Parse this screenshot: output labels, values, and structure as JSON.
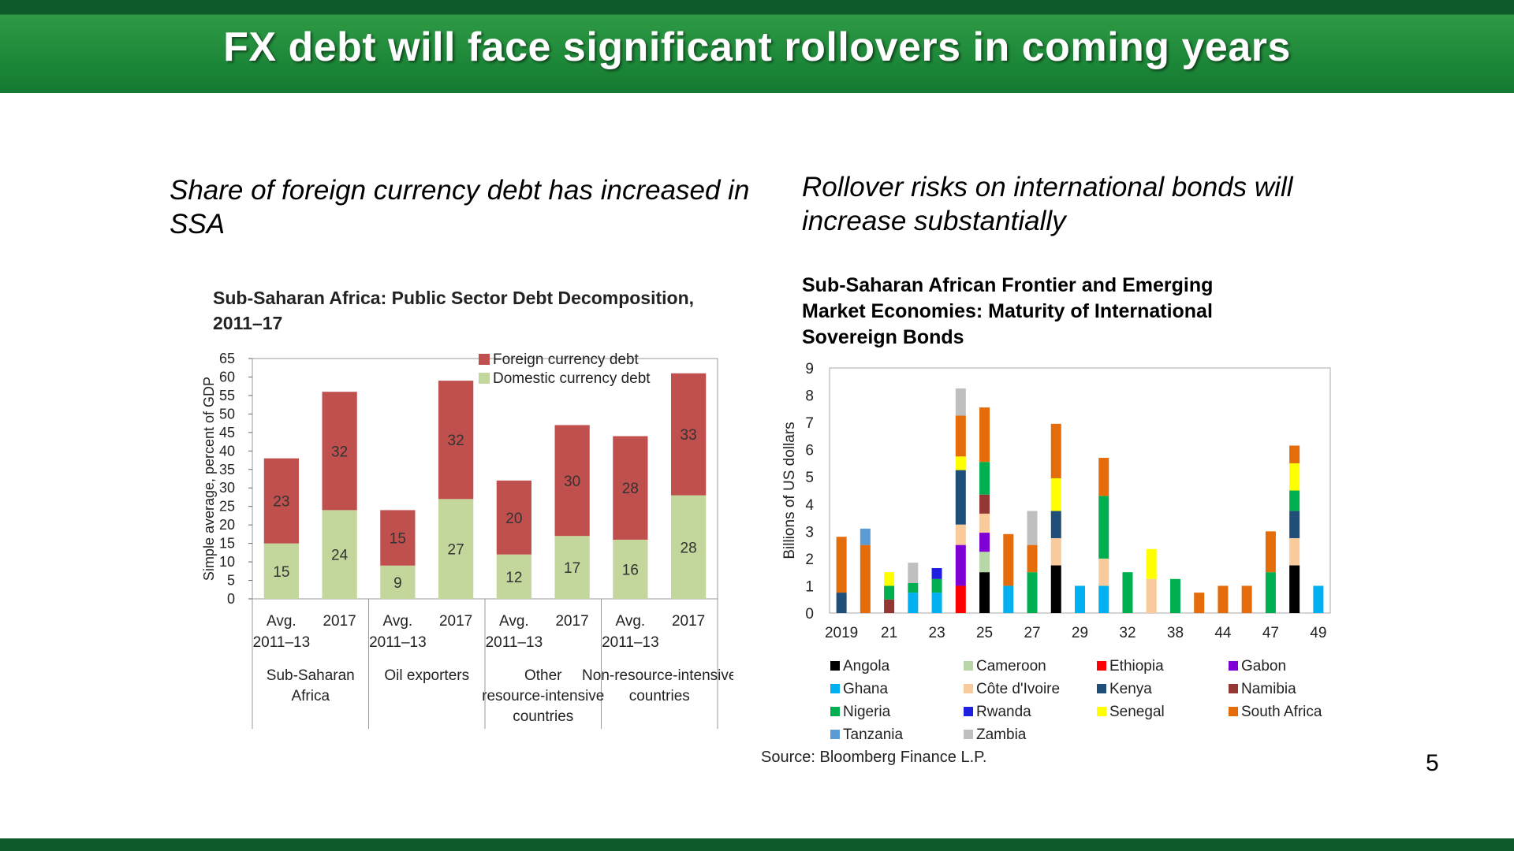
{
  "slide": {
    "title": "FX debt will face significant rollovers in coming years",
    "left_subtitle": "Share of foreign currency debt has increased in SSA",
    "right_subtitle": "Rollover risks on international bonds will increase substantially",
    "page_number": "5",
    "source": "Source: Bloomberg Finance L.P."
  },
  "colors": {
    "banner_dark": "#0e5a2a",
    "banner_green": "#1f8a3a",
    "foreign_debt": "#c0504d",
    "domestic_debt": "#c3d69b"
  },
  "chart_data": [
    {
      "type": "bar",
      "stacked": true,
      "title": "Sub-Saharan Africa: Public Sector Debt Decomposition, 2011–17",
      "ylabel": "Simple average, percent of GDP",
      "ylim": [
        0,
        65
      ],
      "yticks": [
        0,
        5,
        10,
        15,
        20,
        25,
        30,
        35,
        40,
        45,
        50,
        55,
        60,
        65
      ],
      "legend_position": "top-right",
      "categories": [
        "Avg. 2011–13",
        "2017",
        "Avg. 2011–13",
        "2017",
        "Avg. 2011–13",
        "2017",
        "Avg. 2011–13",
        "2017"
      ],
      "groups": [
        "Sub-Saharan Africa",
        "Oil exporters",
        "Other resource-intensive countries",
        "Non-resource-intensive countries"
      ],
      "series": [
        {
          "name": "Domestic currency debt",
          "color": "#c3d69b",
          "values": [
            15,
            24,
            9,
            27,
            12,
            17,
            16,
            28
          ]
        },
        {
          "name": "Foreign currency debt",
          "color": "#c0504d",
          "values": [
            23,
            32,
            15,
            32,
            20,
            30,
            28,
            33
          ]
        }
      ]
    },
    {
      "type": "bar",
      "stacked": true,
      "title": "Sub-Saharan African Frontier and Emerging Market Economies: Maturity of International Sovereign Bonds",
      "ylabel": "Billions of US dollars",
      "ylim": [
        0,
        9
      ],
      "yticks": [
        0,
        1,
        2,
        3,
        4,
        5,
        6,
        7,
        8,
        9
      ],
      "x_years": [
        "2019",
        "2020",
        "2021",
        "2022",
        "2023",
        "2024",
        "2025",
        "2026",
        "2027",
        "2028",
        "2029",
        "2030",
        "2032",
        "2034",
        "2038",
        "2040",
        "2044",
        "2046",
        "2047",
        "2048",
        "2049"
      ],
      "x_tick_labels": [
        "2019",
        "21",
        "23",
        "25",
        "27",
        "29",
        "32",
        "38",
        "44",
        "47",
        "49"
      ],
      "x_tick_years": [
        "2019",
        "2021",
        "2023",
        "2025",
        "2027",
        "2029",
        "2032",
        "2038",
        "2044",
        "2047",
        "2049"
      ],
      "legend_position": "bottom",
      "countries": [
        {
          "name": "Angola",
          "color": "#000000"
        },
        {
          "name": "Cameroon",
          "color": "#b7d7a8"
        },
        {
          "name": "Ethiopia",
          "color": "#ff0000"
        },
        {
          "name": "Gabon",
          "color": "#7f00d4"
        },
        {
          "name": "Ghana",
          "color": "#00b0f0"
        },
        {
          "name": "Côte d'Ivoire",
          "color": "#f9cb9c"
        },
        {
          "name": "Kenya",
          "color": "#1f4e79"
        },
        {
          "name": "Namibia",
          "color": "#943634"
        },
        {
          "name": "Nigeria",
          "color": "#00b050"
        },
        {
          "name": "Rwanda",
          "color": "#1f1fe0"
        },
        {
          "name": "Senegal",
          "color": "#ffff00"
        },
        {
          "name": "South Africa",
          "color": "#e46c0a"
        },
        {
          "name": "Tanzania",
          "color": "#5b9bd5"
        },
        {
          "name": "Zambia",
          "color": "#bfbfbf"
        }
      ],
      "stacks": [
        {
          "year": "2019",
          "segments": [
            {
              "country": "Kenya",
              "value": 0.75
            },
            {
              "country": "South Africa",
              "value": 2.05
            }
          ]
        },
        {
          "year": "2020",
          "segments": [
            {
              "country": "South Africa",
              "value": 2.5
            },
            {
              "country": "Tanzania",
              "value": 0.6
            }
          ]
        },
        {
          "year": "2021",
          "segments": [
            {
              "country": "Namibia",
              "value": 0.5
            },
            {
              "country": "Nigeria",
              "value": 0.5
            },
            {
              "country": "Senegal",
              "value": 0.5
            }
          ]
        },
        {
          "year": "2022",
          "segments": [
            {
              "country": "Ghana",
              "value": 0.75
            },
            {
              "country": "Nigeria",
              "value": 0.35
            },
            {
              "country": "Zambia",
              "value": 0.75
            }
          ]
        },
        {
          "year": "2023",
          "segments": [
            {
              "country": "Ghana",
              "value": 0.75
            },
            {
              "country": "Nigeria",
              "value": 0.5
            },
            {
              "country": "Rwanda",
              "value": 0.4
            }
          ]
        },
        {
          "year": "2024",
          "segments": [
            {
              "country": "Ethiopia",
              "value": 1.0
            },
            {
              "country": "Gabon",
              "value": 1.5
            },
            {
              "country": "Côte d'Ivoire",
              "value": 0.75
            },
            {
              "country": "Kenya",
              "value": 2.0
            },
            {
              "country": "Senegal",
              "value": 0.5
            },
            {
              "country": "South Africa",
              "value": 1.5
            },
            {
              "country": "Zambia",
              "value": 1.0
            }
          ]
        },
        {
          "year": "2025",
          "segments": [
            {
              "country": "Angola",
              "value": 1.5
            },
            {
              "country": "Cameroon",
              "value": 0.75
            },
            {
              "country": "Gabon",
              "value": 0.7
            },
            {
              "country": "Côte d'Ivoire",
              "value": 0.7
            },
            {
              "country": "Namibia",
              "value": 0.7
            },
            {
              "country": "Nigeria",
              "value": 1.2
            },
            {
              "country": "South Africa",
              "value": 2.0
            }
          ]
        },
        {
          "year": "2026",
          "segments": [
            {
              "country": "Ghana",
              "value": 1.0
            },
            {
              "country": "South Africa",
              "value": 1.9
            }
          ]
        },
        {
          "year": "2027",
          "segments": [
            {
              "country": "Nigeria",
              "value": 1.5
            },
            {
              "country": "South Africa",
              "value": 1.0
            },
            {
              "country": "Zambia",
              "value": 1.25
            }
          ]
        },
        {
          "year": "2028",
          "segments": [
            {
              "country": "Angola",
              "value": 1.75
            },
            {
              "country": "Côte d'Ivoire",
              "value": 1.0
            },
            {
              "country": "Kenya",
              "value": 1.0
            },
            {
              "country": "Senegal",
              "value": 1.2
            },
            {
              "country": "South Africa",
              "value": 2.0
            }
          ]
        },
        {
          "year": "2029",
          "segments": [
            {
              "country": "Ghana",
              "value": 1.0
            }
          ]
        },
        {
          "year": "2030",
          "segments": [
            {
              "country": "Ghana",
              "value": 1.0
            },
            {
              "country": "Côte d'Ivoire",
              "value": 1.0
            },
            {
              "country": "Nigeria",
              "value": 2.3
            },
            {
              "country": "South Africa",
              "value": 1.4
            }
          ]
        },
        {
          "year": "2032",
          "segments": [
            {
              "country": "Nigeria",
              "value": 1.5
            }
          ]
        },
        {
          "year": "2034",
          "segments": [
            {
              "country": "Côte d'Ivoire",
              "value": 1.25
            },
            {
              "country": "Senegal",
              "value": 1.1
            }
          ]
        },
        {
          "year": "2038",
          "segments": [
            {
              "country": "Nigeria",
              "value": 1.25
            }
          ]
        },
        {
          "year": "2040",
          "segments": [
            {
              "country": "South Africa",
              "value": 0.75
            }
          ]
        },
        {
          "year": "2044",
          "segments": [
            {
              "country": "South Africa",
              "value": 1.0
            }
          ]
        },
        {
          "year": "2046",
          "segments": [
            {
              "country": "South Africa",
              "value": 1.0
            }
          ]
        },
        {
          "year": "2047",
          "segments": [
            {
              "country": "Nigeria",
              "value": 1.5
            },
            {
              "country": "South Africa",
              "value": 1.5
            }
          ]
        },
        {
          "year": "2048",
          "segments": [
            {
              "country": "Angola",
              "value": 1.75
            },
            {
              "country": "Côte d'Ivoire",
              "value": 1.0
            },
            {
              "country": "Kenya",
              "value": 1.0
            },
            {
              "country": "Nigeria",
              "value": 0.75
            },
            {
              "country": "Senegal",
              "value": 1.0
            },
            {
              "country": "South Africa",
              "value": 0.65
            }
          ]
        },
        {
          "year": "2049",
          "segments": [
            {
              "country": "Ghana",
              "value": 1.0
            }
          ]
        }
      ]
    }
  ]
}
